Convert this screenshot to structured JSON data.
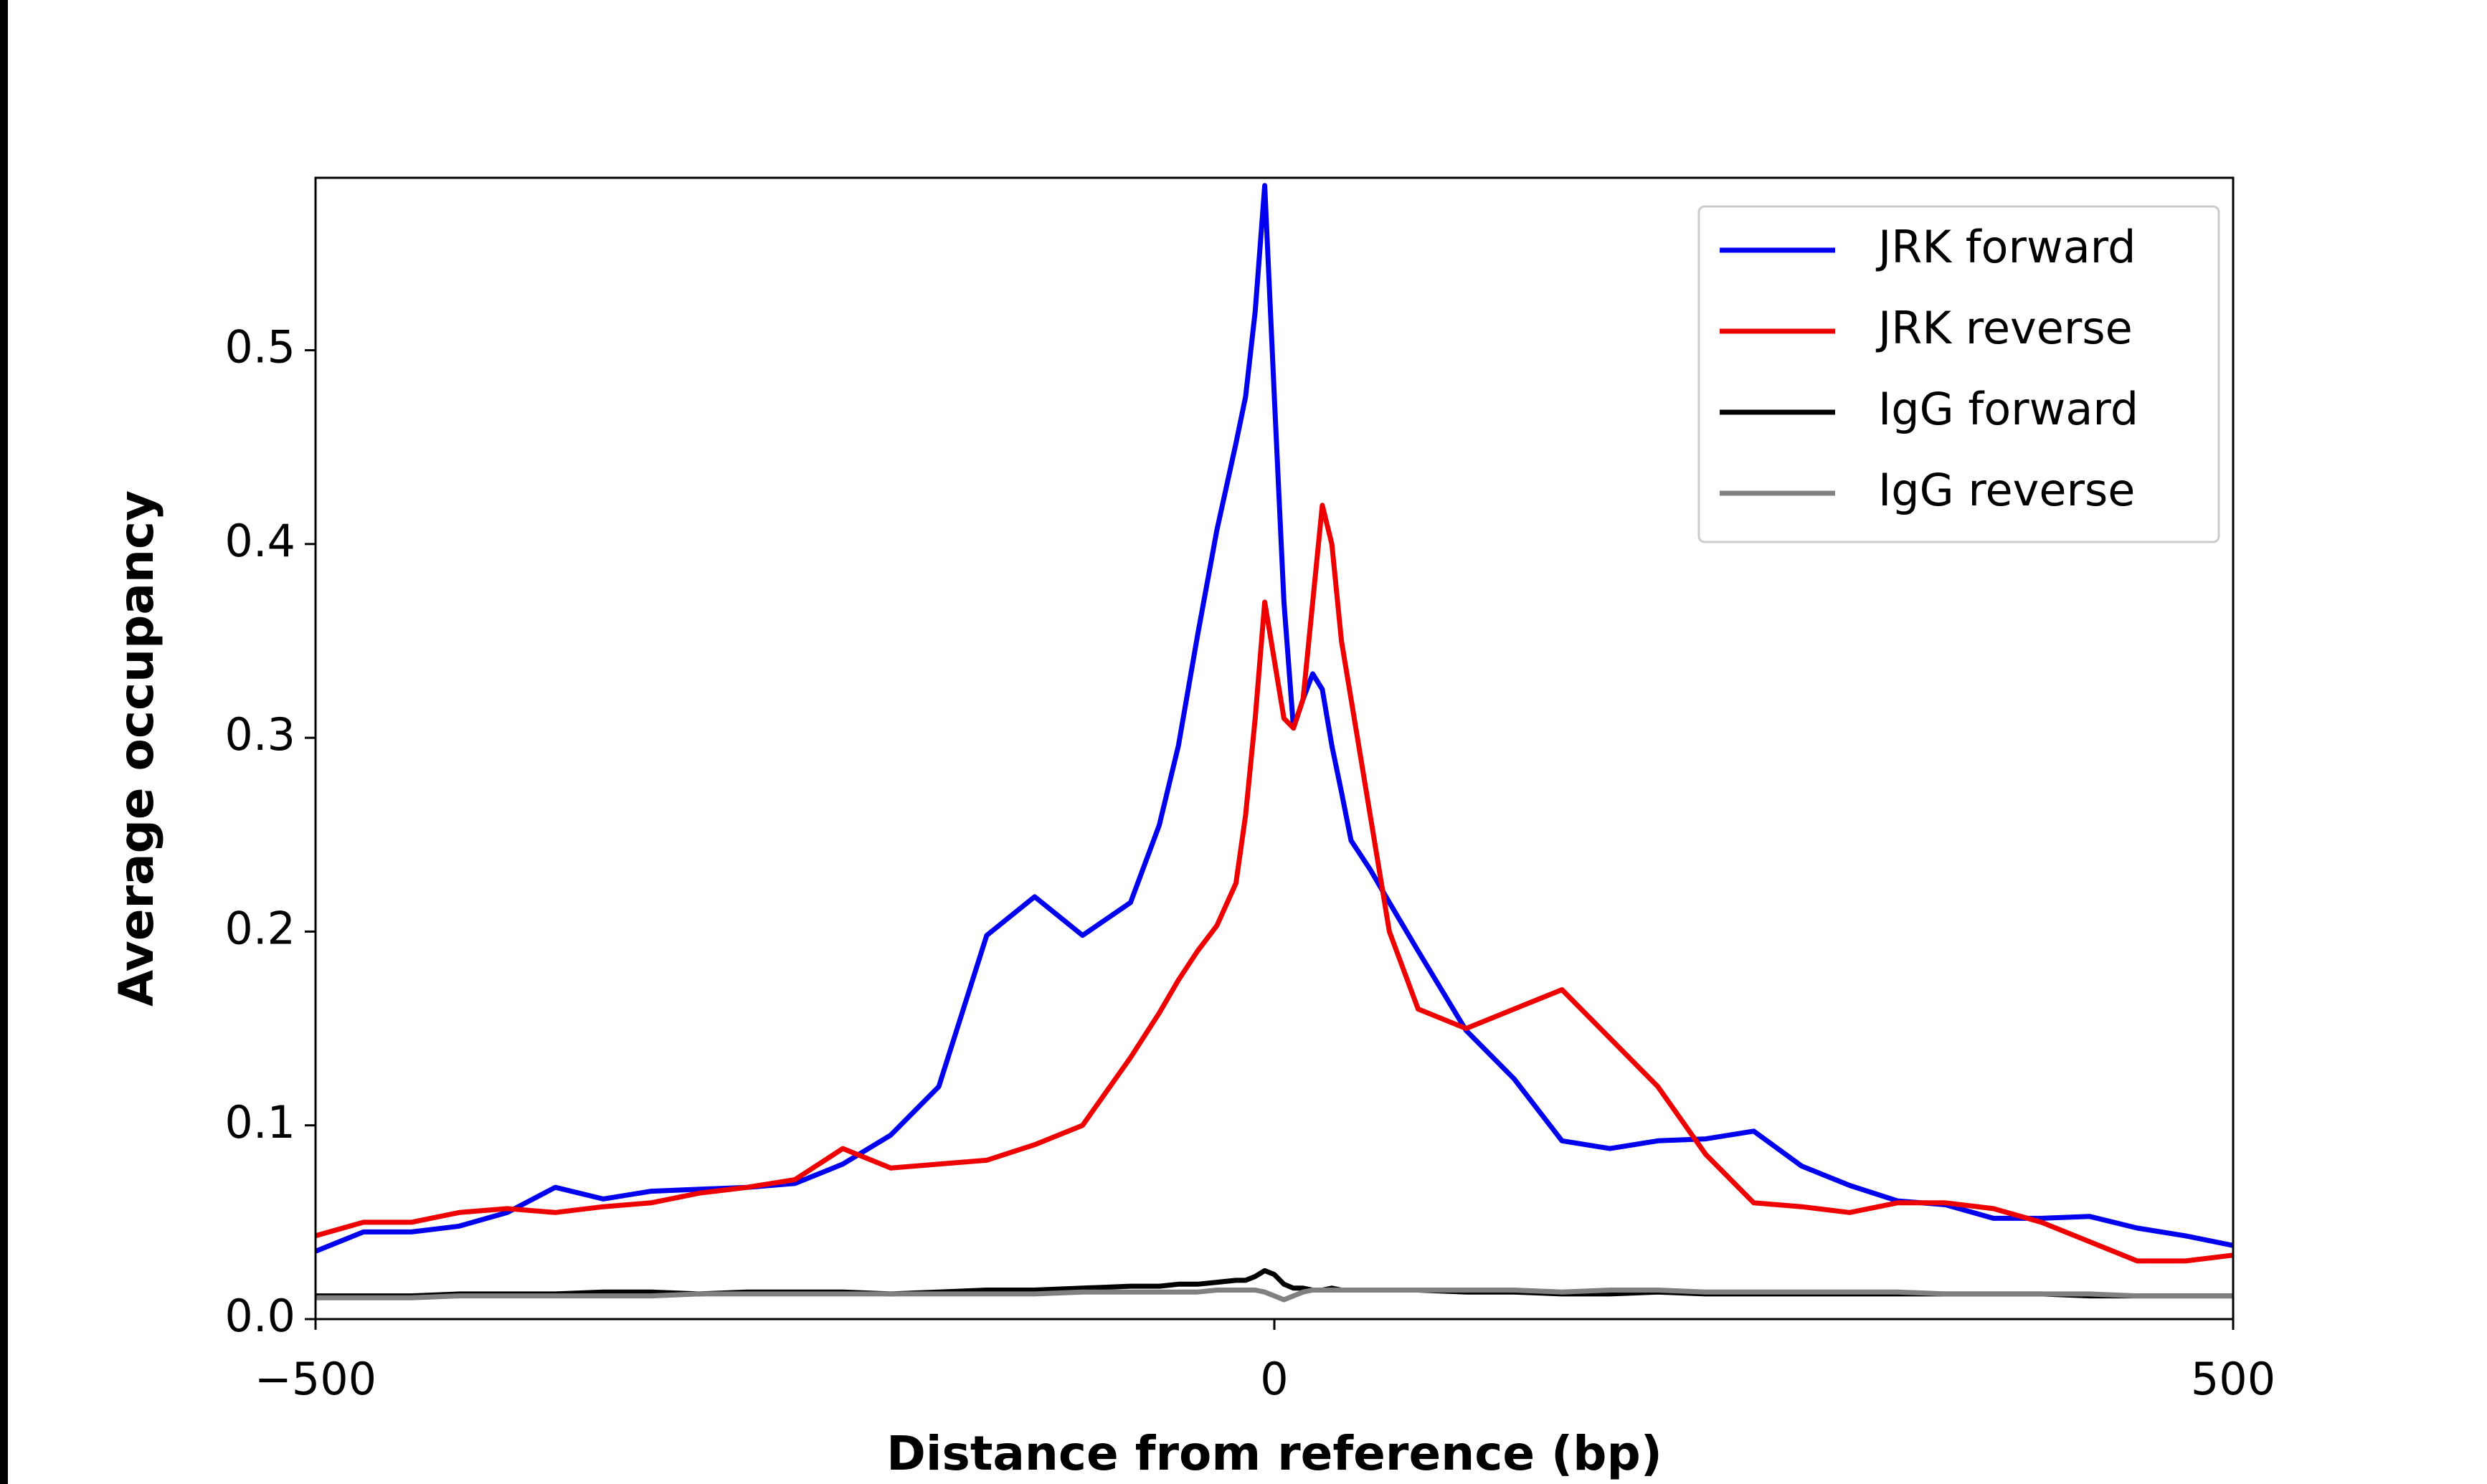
{
  "chart_data": {
    "type": "line",
    "xlabel": "Distance from reference (bp)",
    "ylabel": "Average occupancy",
    "x": [
      -500,
      -475,
      -450,
      -425,
      -400,
      -375,
      -350,
      -325,
      -300,
      -275,
      -250,
      -225,
      -200,
      -175,
      -150,
      -125,
      -100,
      -75,
      -60,
      -50,
      -40,
      -30,
      -20,
      -15,
      -10,
      -5,
      0,
      5,
      10,
      15,
      20,
      25,
      30,
      35,
      40,
      50,
      60,
      75,
      100,
      125,
      150,
      175,
      200,
      225,
      250,
      275,
      300,
      325,
      350,
      375,
      400,
      425,
      450,
      475,
      500
    ],
    "series": [
      {
        "name": "JRK forward",
        "color": "#0000ee",
        "values": [
          0.035,
          0.045,
          0.045,
          0.048,
          0.055,
          0.068,
          0.062,
          0.066,
          0.067,
          0.068,
          0.07,
          0.08,
          0.095,
          0.12,
          0.198,
          0.218,
          0.198,
          0.215,
          0.255,
          0.296,
          0.353,
          0.407,
          0.452,
          0.476,
          0.52,
          0.585,
          0.476,
          0.37,
          0.305,
          0.32,
          0.333,
          0.325,
          0.296,
          0.272,
          0.247,
          0.232,
          0.215,
          0.19,
          0.149,
          0.124,
          0.092,
          0.088,
          0.092,
          0.093,
          0.097,
          0.079,
          0.069,
          0.061,
          0.059,
          0.052,
          0.052,
          0.053,
          0.047,
          0.043,
          0.038
        ]
      },
      {
        "name": "JRK reverse",
        "color": "#ee0000",
        "values": [
          0.043,
          0.05,
          0.05,
          0.055,
          0.057,
          0.055,
          0.058,
          0.06,
          0.065,
          0.068,
          0.072,
          0.088,
          0.078,
          0.08,
          0.082,
          0.09,
          0.1,
          0.135,
          0.158,
          0.175,
          0.19,
          0.203,
          0.225,
          0.26,
          0.31,
          0.37,
          0.34,
          0.31,
          0.305,
          0.32,
          0.37,
          0.42,
          0.4,
          0.35,
          0.32,
          0.26,
          0.2,
          0.16,
          0.15,
          0.16,
          0.17,
          0.145,
          0.12,
          0.085,
          0.06,
          0.058,
          0.055,
          0.06,
          0.06,
          0.057,
          0.05,
          0.04,
          0.03,
          0.03,
          0.033
        ]
      },
      {
        "name": "IgG forward",
        "color": "#000000",
        "values": [
          0.012,
          0.012,
          0.012,
          0.013,
          0.013,
          0.013,
          0.014,
          0.014,
          0.013,
          0.014,
          0.014,
          0.014,
          0.013,
          0.014,
          0.015,
          0.015,
          0.016,
          0.017,
          0.017,
          0.018,
          0.018,
          0.019,
          0.02,
          0.02,
          0.022,
          0.025,
          0.023,
          0.018,
          0.016,
          0.016,
          0.015,
          0.015,
          0.016,
          0.015,
          0.015,
          0.015,
          0.015,
          0.015,
          0.014,
          0.014,
          0.013,
          0.013,
          0.014,
          0.013,
          0.013,
          0.013,
          0.013,
          0.013,
          0.013,
          0.013,
          0.013,
          0.012,
          0.012,
          0.012,
          0.012
        ]
      },
      {
        "name": "IgG reverse",
        "color": "#808080",
        "values": [
          0.011,
          0.011,
          0.011,
          0.012,
          0.012,
          0.012,
          0.012,
          0.012,
          0.013,
          0.013,
          0.013,
          0.013,
          0.013,
          0.013,
          0.013,
          0.013,
          0.014,
          0.014,
          0.014,
          0.014,
          0.014,
          0.015,
          0.015,
          0.015,
          0.015,
          0.014,
          0.012,
          0.01,
          0.012,
          0.014,
          0.015,
          0.015,
          0.015,
          0.015,
          0.015,
          0.015,
          0.015,
          0.015,
          0.015,
          0.015,
          0.014,
          0.015,
          0.015,
          0.014,
          0.014,
          0.014,
          0.014,
          0.014,
          0.013,
          0.013,
          0.013,
          0.013,
          0.012,
          0.012,
          0.012
        ]
      }
    ],
    "xlim": [
      -500,
      500
    ],
    "xticks": [
      {
        "value": -500,
        "label": "−500"
      },
      0,
      500
    ],
    "ylim": [
      0,
      0.589
    ],
    "yticks": [
      {
        "value": 0,
        "label": "0.0"
      },
      0.1,
      0.2,
      0.3,
      0.4,
      0.5
    ],
    "legend": "upper right"
  }
}
